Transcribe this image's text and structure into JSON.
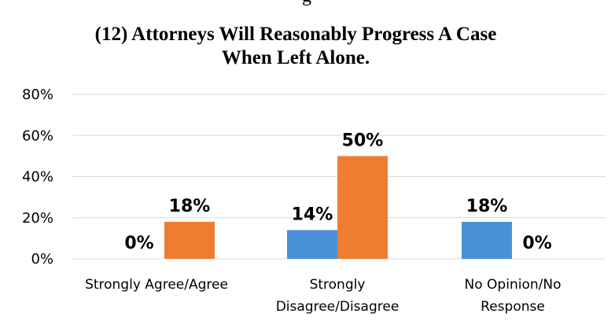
{
  "chart_data": {
    "type": "bar",
    "title": "(12) Attorneys Will Reasonably Progress A Case\nWhen Left Alone.",
    "title_lines": [
      "(12) Attorneys Will Reasonably Progress A Case",
      "When Left Alone."
    ],
    "clipped_top_text": "g",
    "categories": [
      "Strongly Agree/Agree",
      "Strongly Disagree/Disagree",
      "No Opinion/No Response"
    ],
    "category_label_lines": [
      [
        "Strongly Agree/Agree"
      ],
      [
        "Strongly",
        "Disagree/Disagree"
      ],
      [
        "No Opinion/No",
        "Response"
      ]
    ],
    "series": [
      {
        "values": [
          0,
          14,
          18
        ],
        "color": "#4a90d9"
      },
      {
        "values": [
          18,
          50,
          0
        ],
        "color": "#ed7d31"
      }
    ],
    "data_labels": [
      [
        "0%",
        "14%",
        "18%"
      ],
      [
        "18%",
        "50%",
        "0%"
      ]
    ],
    "ylim": [
      0,
      80
    ],
    "yticks": [
      0,
      20,
      40,
      60,
      80
    ],
    "ytick_labels": [
      "0%",
      "20%",
      "40%",
      "60%",
      "80%"
    ],
    "xlabel": "",
    "ylabel": "",
    "grid": true,
    "legend": "none"
  }
}
